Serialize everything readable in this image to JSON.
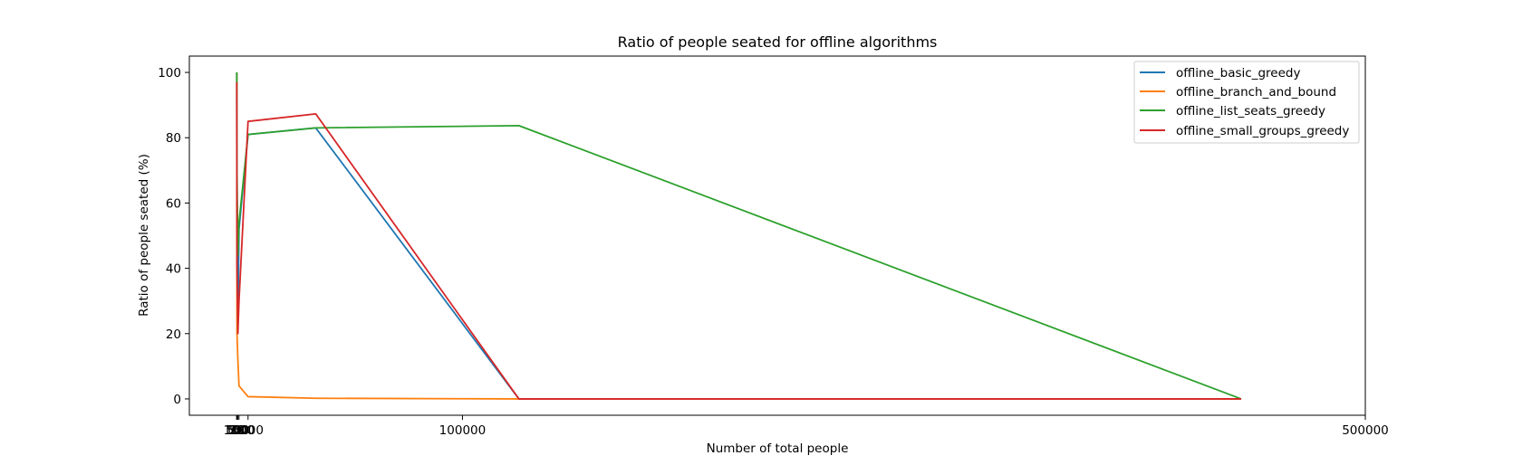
{
  "chart_data": {
    "type": "line",
    "title": "Ratio of people seated for offline algorithms",
    "xlabel": "Number of total people",
    "ylabel": "Ratio of people seated (%)",
    "xlim": [
      -21000,
      500000
    ],
    "ylim": [
      -5,
      105
    ],
    "xticks": [
      {
        "value": 0,
        "label": "0"
      },
      {
        "value": 10,
        "label": "10"
      },
      {
        "value": 20,
        "label": "20"
      },
      {
        "value": 50,
        "label": "50"
      },
      {
        "value": 100,
        "label": "100"
      },
      {
        "value": 500,
        "label": "500"
      },
      {
        "value": 1000,
        "label": "1000"
      },
      {
        "value": 5000,
        "label": "5000"
      },
      {
        "value": 100000,
        "label": "100000"
      },
      {
        "value": 500000,
        "label": "500000"
      }
    ],
    "yticks": [
      0,
      20,
      40,
      60,
      80,
      100
    ],
    "grid": false,
    "legend_position": "top-right",
    "series": [
      {
        "name": "offline_basic_greedy",
        "color": "#1f77b4",
        "points": [
          [
            10,
            100
          ],
          [
            20,
            80
          ],
          [
            50,
            75
          ],
          [
            100,
            50
          ],
          [
            500,
            23
          ],
          [
            1000,
            52
          ],
          [
            5000,
            81
          ],
          [
            35000,
            83
          ],
          [
            125000,
            0
          ],
          [
            445000,
            0
          ]
        ]
      },
      {
        "name": "offline_branch_and_bound",
        "color": "#ff7f0e",
        "points": [
          [
            10,
            100
          ],
          [
            20,
            80
          ],
          [
            50,
            60
          ],
          [
            100,
            20
          ],
          [
            500,
            12
          ],
          [
            1000,
            4
          ],
          [
            5000,
            0.7
          ],
          [
            35000,
            0.2
          ],
          [
            125000,
            0
          ],
          [
            445000,
            0
          ]
        ]
      },
      {
        "name": "offline_list_seats_greedy",
        "color": "#2ca02c",
        "points": [
          [
            10,
            100
          ],
          [
            20,
            90
          ],
          [
            50,
            85
          ],
          [
            100,
            70
          ],
          [
            500,
            44
          ],
          [
            1000,
            54
          ],
          [
            5000,
            81
          ],
          [
            35000,
            83
          ],
          [
            125000,
            83.7
          ],
          [
            445000,
            0
          ]
        ]
      },
      {
        "name": "offline_small_groups_greedy",
        "color": "#d62728",
        "points": [
          [
            10,
            97
          ],
          [
            20,
            85
          ],
          [
            50,
            70
          ],
          [
            100,
            40
          ],
          [
            500,
            20
          ],
          [
            1000,
            30
          ],
          [
            5000,
            85
          ],
          [
            35000,
            87.3
          ],
          [
            125000,
            0
          ],
          [
            445000,
            0
          ]
        ]
      }
    ]
  }
}
